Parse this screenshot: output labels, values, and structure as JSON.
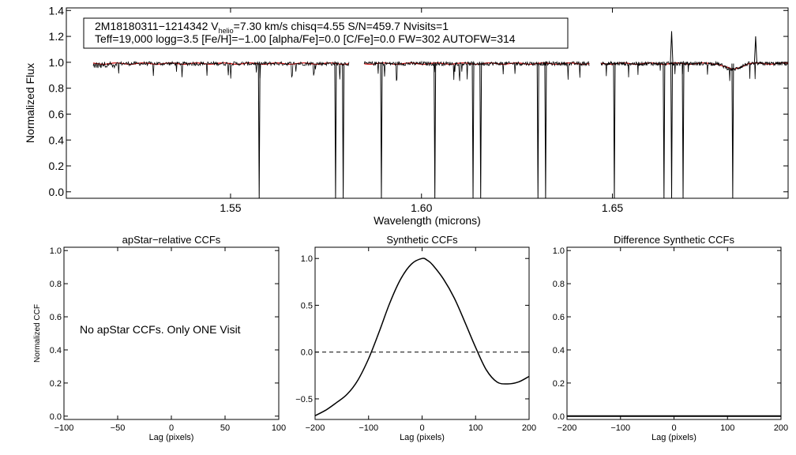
{
  "chart_data": [
    {
      "type": "line",
      "id": "spectrum",
      "xlabel": "Wavelength (microns)",
      "ylabel": "Normalized Flux",
      "xlim": [
        1.507,
        1.696
      ],
      "ylim": [
        -0.05,
        1.42
      ],
      "xticks": [
        1.55,
        1.6,
        1.65
      ],
      "xtick_labels": [
        "1.55",
        "1.60",
        "1.65"
      ],
      "yticks": [
        0.0,
        0.2,
        0.4,
        0.6,
        0.8,
        1.0,
        1.2,
        1.4
      ],
      "ytick_labels": [
        "0.0",
        "0.2",
        "0.4",
        "0.6",
        "0.8",
        "1.0",
        "1.2",
        "1.4"
      ],
      "chips": [
        [
          1.514,
          1.581
        ],
        [
          1.585,
          1.644
        ],
        [
          1.647,
          1.696
        ]
      ],
      "continuum_level": 0.99,
      "drops": [
        1.5575,
        1.5775,
        1.5795,
        1.5895,
        1.6035,
        1.6135,
        1.6155,
        1.6305,
        1.6325,
        1.6505,
        1.6635,
        1.6655,
        1.6685,
        1.6815
      ],
      "spikes": [
        [
          1.6655,
          1.24
        ],
        [
          1.6875,
          1.2
        ]
      ],
      "info_box": {
        "line1_object": "2M18180311−1214342",
        "line1_v": "V",
        "line1_v_sub": "helio",
        "line1_rest": "=7.30 km/s  chisq=4.55  S/N=459.7  Nvisits=1",
        "line2": "Teff=19,000 logg=3.5 [Fe/H]=−1.00 [alpha/Fe]=0.0 [C/Fe]=0.0 FW=302 AUTOFW=314"
      },
      "colors": {
        "data": "#000000",
        "model": "#cc0000"
      }
    },
    {
      "type": "line",
      "id": "apstar-ccf",
      "title": "apStar−relative CCFs",
      "xlabel": "Lag (pixels)",
      "ylabel": "Normalized CCF",
      "xlim": [
        -100,
        100
      ],
      "ylim": [
        -0.02,
        1.02
      ],
      "xticks": [
        -100,
        -50,
        0,
        50,
        100
      ],
      "xtick_labels": [
        "−100",
        "−50",
        "0",
        "50",
        "100"
      ],
      "yticks": [
        0.0,
        0.2,
        0.4,
        0.6,
        0.8,
        1.0
      ],
      "ytick_labels": [
        "0.0",
        "0.2",
        "0.4",
        "0.6",
        "0.8",
        "1.0"
      ],
      "message": "No apStar CCFs.  Only ONE Visit",
      "series": []
    },
    {
      "type": "line",
      "id": "synthetic-ccf",
      "title": "Synthetic CCFs",
      "xlabel": "Lag (pixels)",
      "xlim": [
        -200,
        200
      ],
      "ylim": [
        -0.72,
        1.12
      ],
      "xticks": [
        -200,
        -100,
        0,
        100,
        200
      ],
      "xtick_labels": [
        "−200",
        "−100",
        "0",
        "100",
        "200"
      ],
      "yticks": [
        -0.5,
        0.0,
        0.5,
        1.0
      ],
      "ytick_labels": [
        "−0.5",
        "0.0",
        "0.5",
        "1.0"
      ],
      "zero_line": 0.0,
      "series": [
        {
          "x": [
            -200,
            -180,
            -160,
            -140,
            -120,
            -100,
            -80,
            -60,
            -40,
            -20,
            0,
            10,
            20,
            40,
            60,
            80,
            100,
            120,
            140,
            160,
            180,
            200
          ],
          "y": [
            -0.68,
            -0.62,
            -0.54,
            -0.45,
            -0.3,
            -0.07,
            0.22,
            0.53,
            0.78,
            0.94,
            1.0,
            0.98,
            0.93,
            0.78,
            0.58,
            0.32,
            0.05,
            -0.19,
            -0.32,
            -0.34,
            -0.32,
            -0.26
          ]
        }
      ]
    },
    {
      "type": "line",
      "id": "difference-ccf",
      "title": "Difference Synthetic CCFs",
      "xlabel": "Lag (pixels)",
      "xlim": [
        -200,
        200
      ],
      "ylim": [
        -0.02,
        1.02
      ],
      "xticks": [
        -200,
        -100,
        0,
        100,
        200
      ],
      "xtick_labels": [
        "−200",
        "−100",
        "0",
        "100",
        "200"
      ],
      "yticks": [
        0.0,
        0.2,
        0.4,
        0.6,
        0.8,
        1.0
      ],
      "ytick_labels": [
        "0.0",
        "0.2",
        "0.4",
        "0.6",
        "0.8",
        "1.0"
      ],
      "series": [
        {
          "x": [
            -200,
            200
          ],
          "y": [
            0.0,
            0.0
          ]
        }
      ]
    }
  ]
}
